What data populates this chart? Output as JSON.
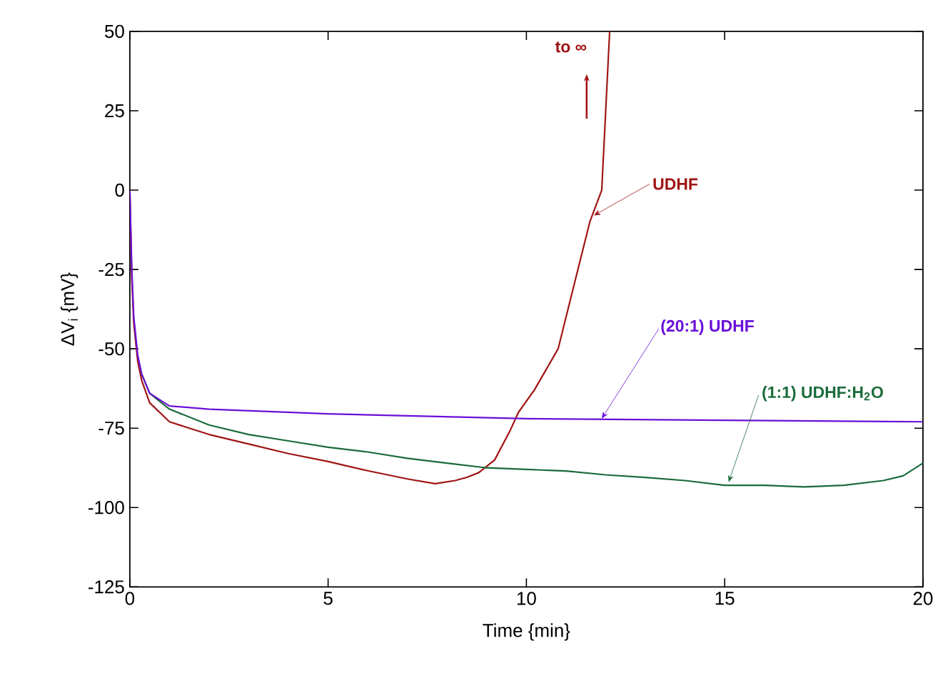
{
  "chart_data": {
    "type": "line",
    "xlabel": "Time {min}",
    "ylabel": "ΔV$_{i}$ {mV}",
    "xlim": [
      0,
      20
    ],
    "ylim": [
      -125,
      50
    ],
    "xticks": [
      0,
      5,
      10,
      15,
      20
    ],
    "yticks": [
      -125,
      -100,
      -75,
      -50,
      -25,
      0,
      25,
      50
    ],
    "grid": false,
    "marker": "none",
    "line_style": "solid",
    "series": [
      {
        "color": "#a01414",
        "x": [
          0,
          0.05,
          0.1,
          0.2,
          0.3,
          0.5,
          1,
          2,
          3,
          4,
          5,
          6,
          7,
          7.7,
          8.2,
          8.5,
          8.8,
          9.2,
          9.6,
          9.8,
          10.2,
          10.8,
          11.3,
          11.6,
          11.9,
          12.1
        ],
        "values": [
          0,
          -28,
          -42,
          -54,
          -60,
          -67,
          -73,
          -77,
          -80,
          -83,
          -85.5,
          -88.4,
          -91,
          -92.5,
          -91.5,
          -90.5,
          -89,
          -85,
          -75.5,
          -70,
          -63,
          -50,
          -25,
          -10,
          0,
          50
        ]
      },
      {
        "color": "#1a6b3a",
        "x": [
          0.3,
          0.5,
          1,
          2,
          3,
          4,
          5,
          6,
          7,
          8,
          9,
          10,
          11,
          12,
          13,
          14,
          15,
          16,
          17,
          18,
          19,
          19.5,
          20
        ],
        "values": [
          -58,
          -64,
          -69,
          -74,
          -77,
          -79,
          -81,
          -82.5,
          -84.5,
          -86,
          -87.5,
          -88,
          -88.5,
          -89.7,
          -90.5,
          -91.5,
          -93,
          -93,
          -93.5,
          -93,
          -91.5,
          -90,
          -86
        ]
      },
      {
        "color": "#6a10d8",
        "x": [
          0,
          0.05,
          0.1,
          0.2,
          0.3,
          0.5,
          1,
          2,
          5,
          10,
          15,
          20
        ],
        "values": [
          0,
          -25,
          -40,
          -52,
          -58,
          -64,
          -68,
          -69,
          -70.5,
          -72,
          -72.5,
          -73
        ]
      }
    ],
    "annotations": [
      "to ∞",
      {
        "text": "UDHF",
        "x": 11.7,
        "y": -8
      },
      {
        "text": "(20:1) UDHF",
        "x": 11.9,
        "y": -72
      },
      {
        "text": "(1:1) UDHF:H$_{2}$O",
        "x": 15.1,
        "y": -92
      }
    ]
  }
}
